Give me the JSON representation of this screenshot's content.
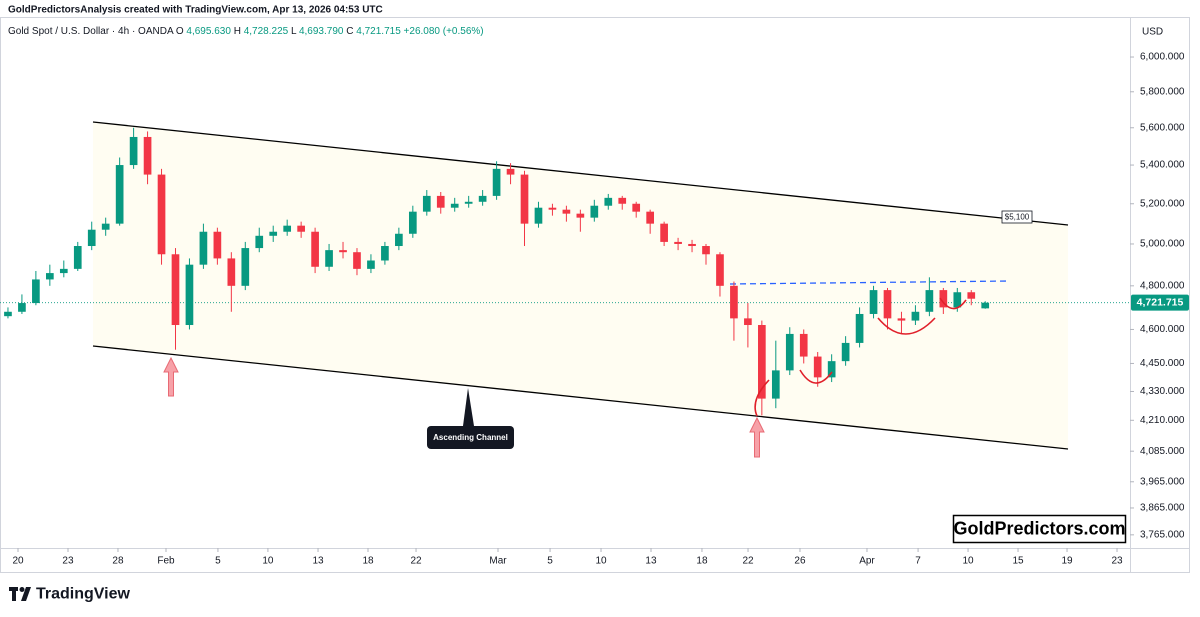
{
  "header": {
    "caption": "GoldPredictorsAnalysis created with TradingView.com, Apr 13, 2026 04:53 UTC"
  },
  "chart_data": {
    "type": "candlestick",
    "symbol": "Gold Spot / U.S. Dollar · 4h · OANDA",
    "ohlc_legend": [
      {
        "label": "O",
        "value": "4,695.630"
      },
      {
        "label": "H",
        "value": "4,728.225"
      },
      {
        "label": "L",
        "value": "4,693.790"
      },
      {
        "label": "C",
        "value": "4,721.715"
      }
    ],
    "change": "+26.080 (+0.56%)",
    "currency": "USD",
    "open": [
      4660,
      4680,
      4720,
      4830,
      4860,
      4880,
      4990,
      5070,
      5100,
      5400,
      5550,
      5350,
      4950,
      4620,
      4900,
      5060,
      4930,
      4800,
      4980,
      5040,
      5060,
      5090,
      5060,
      4890,
      4970,
      4960,
      4880,
      4920,
      4990,
      5050,
      5160,
      5240,
      5180,
      5200,
      5210,
      5240,
      5380,
      5350,
      5100,
      5180,
      5170,
      5150,
      5130,
      5190,
      5230,
      5200,
      5160,
      5100,
      5010,
      5000,
      4990,
      4950,
      4800,
      4650,
      4620,
      4300,
      4420,
      4580,
      4480,
      4390,
      4460,
      4540,
      4670,
      4780,
      4650,
      4640,
      4680,
      4780,
      4700,
      4770,
      4695.63
    ],
    "high": [
      4700,
      4760,
      4870,
      4900,
      4920,
      5010,
      5110,
      5130,
      5440,
      5600,
      5580,
      5380,
      4980,
      4930,
      5100,
      5080,
      4960,
      5010,
      5080,
      5090,
      5120,
      5110,
      5080,
      5000,
      5010,
      4980,
      4950,
      5010,
      5080,
      5190,
      5270,
      5260,
      5230,
      5240,
      5270,
      5420,
      5410,
      5370,
      5210,
      5200,
      5190,
      5170,
      5220,
      5250,
      5240,
      5210,
      5170,
      5110,
      5030,
      5020,
      5000,
      4960,
      4820,
      4720,
      4640,
      4550,
      4610,
      4600,
      4500,
      4490,
      4570,
      4700,
      4800,
      4790,
      4680,
      4710,
      4840,
      4790,
      4790,
      4780,
      4728.225
    ],
    "low": [
      4650,
      4670,
      4710,
      4800,
      4840,
      4870,
      4970,
      5040,
      5090,
      5380,
      5300,
      4900,
      4510,
      4600,
      4880,
      4900,
      4680,
      4780,
      4960,
      5010,
      5040,
      5030,
      4860,
      4870,
      4930,
      4850,
      4860,
      4900,
      4970,
      5030,
      5140,
      5150,
      5160,
      5180,
      5190,
      5220,
      5300,
      4990,
      5080,
      5140,
      5110,
      5060,
      5110,
      5170,
      5170,
      5130,
      5050,
      4990,
      4970,
      4960,
      4900,
      4750,
      4550,
      4520,
      4230,
      4260,
      4400,
      4450,
      4350,
      4370,
      4440,
      4520,
      4650,
      4600,
      4580,
      4620,
      4660,
      4670,
      4680,
      4710,
      4693.79
    ],
    "close": [
      4680,
      4720,
      4830,
      4860,
      4880,
      4990,
      5070,
      5100,
      5400,
      5550,
      5350,
      4950,
      4620,
      4900,
      5060,
      4930,
      4800,
      4980,
      5040,
      5060,
      5090,
      5060,
      4890,
      4970,
      4960,
      4880,
      4920,
      4990,
      5050,
      5160,
      5240,
      5180,
      5200,
      5210,
      5240,
      5380,
      5350,
      5100,
      5180,
      5170,
      5150,
      5130,
      5190,
      5230,
      5200,
      5160,
      5100,
      5010,
      5000,
      4990,
      4950,
      4800,
      4650,
      4620,
      4300,
      4420,
      4580,
      4480,
      4390,
      4460,
      4540,
      4670,
      4780,
      4650,
      4640,
      4680,
      4780,
      4700,
      4770,
      4740,
      4721.715
    ],
    "up_color": "#089981",
    "down_color": "#f23645",
    "log_scale": true,
    "ylim": [
      3717,
      6251
    ],
    "yticks": [
      {
        "value": 6000,
        "label": "6,000.000"
      },
      {
        "value": 5800,
        "label": "5,800.000"
      },
      {
        "value": 5600,
        "label": "5,600.000"
      },
      {
        "value": 5400,
        "label": "5,400.000"
      },
      {
        "value": 5200,
        "label": "5,200.000"
      },
      {
        "value": 5000,
        "label": "5,000.000"
      },
      {
        "value": 4800,
        "label": "4,800.000"
      },
      {
        "value": 4600,
        "label": "4,600.000"
      },
      {
        "value": 4450,
        "label": "4,450.000"
      },
      {
        "value": 4330,
        "label": "4,330.000"
      },
      {
        "value": 4210,
        "label": "4,210.000"
      },
      {
        "value": 4085,
        "label": "4,085.000"
      },
      {
        "value": 3965,
        "label": "3,965.000"
      },
      {
        "value": 3865,
        "label": "3,865.000"
      },
      {
        "value": 3765,
        "label": "3,765.000"
      }
    ],
    "xlim": [
      -0.57,
      80.37
    ],
    "xticks": [
      {
        "value": 0.72,
        "label": "20"
      },
      {
        "value": 4.3,
        "label": "23"
      },
      {
        "value": 7.88,
        "label": "28"
      },
      {
        "value": 11.32,
        "label": "Feb"
      },
      {
        "value": 15.04,
        "label": "5"
      },
      {
        "value": 18.62,
        "label": "10"
      },
      {
        "value": 22.21,
        "label": "13"
      },
      {
        "value": 25.79,
        "label": "18"
      },
      {
        "value": 29.23,
        "label": "22"
      },
      {
        "value": 35.1,
        "label": "Mar"
      },
      {
        "value": 38.83,
        "label": "5"
      },
      {
        "value": 42.48,
        "label": "10"
      },
      {
        "value": 46.06,
        "label": "13"
      },
      {
        "value": 49.71,
        "label": "18"
      },
      {
        "value": 53.01,
        "label": "22"
      },
      {
        "value": 56.73,
        "label": "26"
      },
      {
        "value": 61.53,
        "label": "Apr"
      },
      {
        "value": 65.19,
        "label": "7"
      },
      {
        "value": 68.77,
        "label": "10"
      },
      {
        "value": 72.35,
        "label": "15"
      },
      {
        "value": 75.86,
        "label": "19"
      },
      {
        "value": 79.44,
        "label": "23"
      }
    ],
    "last_price_label": "4,721.715",
    "annotations": {
      "target_label": "$5,100",
      "channel_label": "Ascending Channel"
    }
  },
  "watermark": "GoldPredictors.com",
  "footer": "TradingView"
}
